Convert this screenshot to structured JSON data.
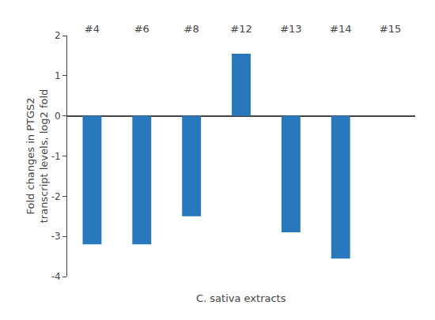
{
  "chart_data": {
    "type": "bar",
    "categories": [
      "#4",
      "#6",
      "#8",
      "#12",
      "#13",
      "#14",
      "#15"
    ],
    "values": [
      -3.2,
      -3.2,
      -2.5,
      1.55,
      -2.9,
      -3.55,
      0.0
    ],
    "color": "#2878be",
    "ylim": [
      -4,
      2
    ],
    "yticks": [
      -4,
      -3,
      -2,
      -1,
      0,
      1,
      2
    ],
    "ylabel": "Fold changes in PTGS2\ntranscript levels, log2 fold",
    "xlabel": "C. sativa extracts",
    "grid": false
  }
}
